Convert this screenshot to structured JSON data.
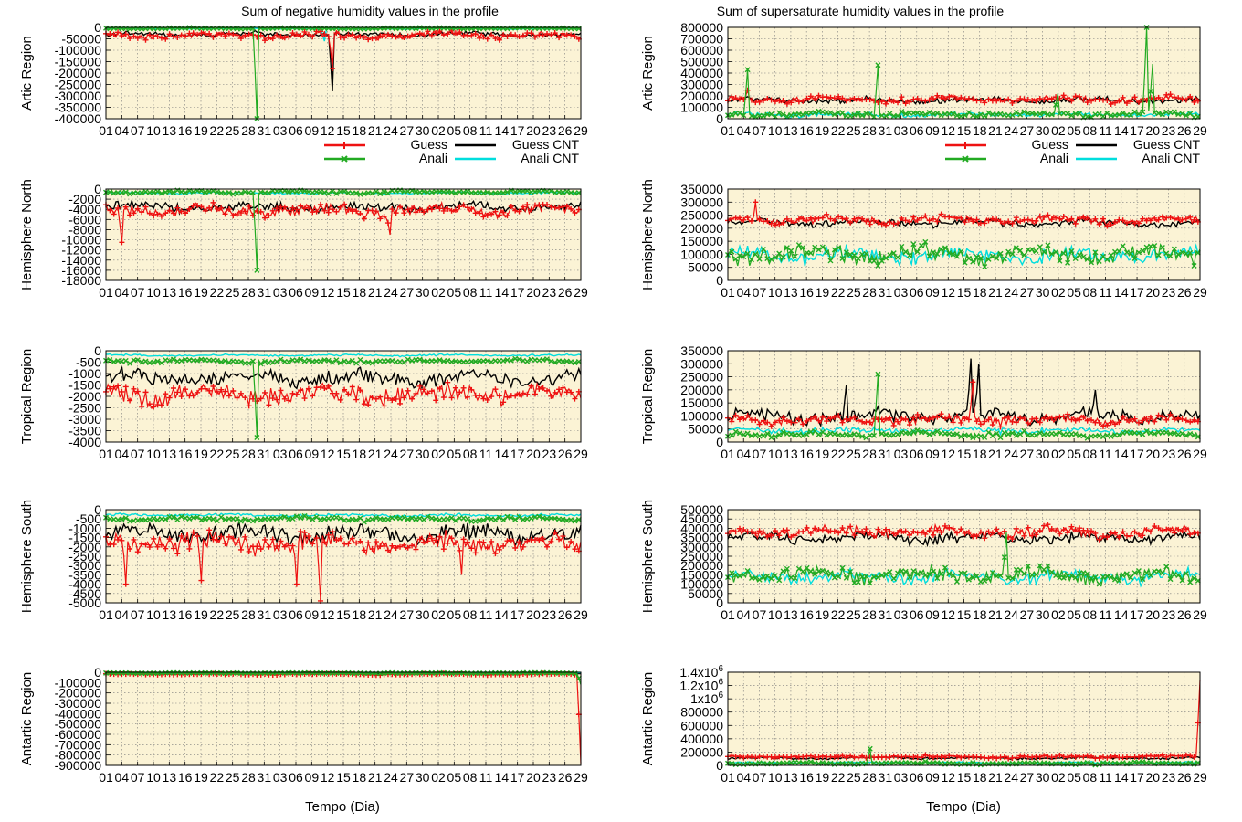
{
  "chart_data": {
    "type": "line",
    "series_names": [
      "Guess",
      "Guess CNT",
      "Anali",
      "Anali CNT"
    ],
    "colors": {
      "guess": "#ee1111",
      "guess_cnt": "#000000",
      "anali": "#22aa22",
      "anali_cnt": "#00dddd"
    },
    "x_tick_labels": [
      "01",
      "04",
      "07",
      "10",
      "13",
      "16",
      "19",
      "22",
      "25",
      "28",
      "31",
      "03",
      "06",
      "09",
      "12",
      "15",
      "18",
      "21",
      "24",
      "27",
      "30",
      "02",
      "05",
      "08",
      "11",
      "14",
      "17",
      "20",
      "23",
      "26",
      "29"
    ],
    "x_axis_label": "Tempo (Dia)",
    "panels": [
      {
        "id": "artic-neg",
        "column": "negative",
        "title": "Sum of negative humidity values in the     profile",
        "ylabel": "Artic Region",
        "ylim": [
          -400000,
          0
        ],
        "yticks": [
          "0",
          "-50000",
          "-100000",
          "-150000",
          "-200000",
          "-250000",
          "-300000",
          "-350000",
          "-400000"
        ],
        "legend": [
          "Guess",
          "Guess CNT",
          "Anali",
          "Anali CNT"
        ],
        "levels": {
          "guess": -35000,
          "guess_cnt": -30000,
          "anali": -4000,
          "anali_cnt": -6000
        },
        "noise": {
          "guess": 20000,
          "guess_cnt": 15000,
          "anali": 3000,
          "anali_cnt": 2500
        },
        "spikes": [
          {
            "series": "anali",
            "pos": 0.316,
            "value": -400000
          },
          {
            "series": "guess_cnt",
            "pos": 0.478,
            "value": -280000
          },
          {
            "series": "guess",
            "pos": 0.478,
            "value": -180000
          },
          {
            "series": "anali_cnt",
            "pos": 0.46,
            "value": -60000
          }
        ]
      },
      {
        "id": "artic-sup",
        "column": "supersaturate",
        "title": "Sum of supersaturate humidity values in the profile",
        "ylabel": "Artic Region",
        "ylim": [
          0,
          800000
        ],
        "yticks": [
          "800000",
          "700000",
          "600000",
          "500000",
          "400000",
          "300000",
          "200000",
          "100000",
          "0"
        ],
        "legend": [
          "Guess",
          "Guess CNT",
          "Anali",
          "Anali CNT"
        ],
        "levels": {
          "guess": 170000,
          "guess_cnt": 160000,
          "anali": 40000,
          "anali_cnt": 35000
        },
        "noise": {
          "guess": 40000,
          "guess_cnt": 35000,
          "anali": 30000,
          "anali_cnt": 25000
        },
        "spikes": [
          {
            "series": "anali",
            "pos": 0.043,
            "value": 430000
          },
          {
            "series": "anali",
            "pos": 0.316,
            "value": 470000
          },
          {
            "series": "anali",
            "pos": 0.885,
            "value": 800000
          },
          {
            "series": "anali",
            "pos": 0.9,
            "value": 480000
          },
          {
            "series": "anali",
            "pos": 0.7,
            "value": 220000
          },
          {
            "series": "guess",
            "pos": 0.04,
            "value": 250000
          }
        ]
      },
      {
        "id": "north-neg",
        "column": "negative",
        "ylabel": "Hemisphere North",
        "ylim": [
          -18000,
          0
        ],
        "yticks": [
          "0",
          "-2000",
          "-4000",
          "-6000",
          "-8000",
          "-10000",
          "-12000",
          "-14000",
          "-16000",
          "-18000"
        ],
        "levels": {
          "guess": -4200,
          "guess_cnt": -3500,
          "anali": -600,
          "anali_cnt": -800
        },
        "noise": {
          "guess": 1600,
          "guess_cnt": 1300,
          "anali": 400,
          "anali_cnt": 300
        },
        "spikes": [
          {
            "series": "anali",
            "pos": 0.316,
            "value": -16000
          },
          {
            "series": "guess",
            "pos": 0.033,
            "value": -10500
          },
          {
            "series": "guess",
            "pos": 0.6,
            "value": -9000
          }
        ]
      },
      {
        "id": "north-sup",
        "column": "supersaturate",
        "ylabel": "Hemisphere North",
        "ylim": [
          0,
          350000
        ],
        "yticks": [
          "350000",
          "300000",
          "250000",
          "200000",
          "150000",
          "100000",
          "50000",
          "0"
        ],
        "levels": {
          "guess": 230000,
          "guess_cnt": 220000,
          "anali": 100000,
          "anali_cnt": 95000
        },
        "noise": {
          "guess": 22000,
          "guess_cnt": 20000,
          "anali": 45000,
          "anali_cnt": 40000
        },
        "spikes": [
          {
            "series": "guess",
            "pos": 0.06,
            "value": 300000
          }
        ]
      },
      {
        "id": "tropical-neg",
        "column": "negative",
        "ylabel": "Tropical Region",
        "ylim": [
          -4000,
          0
        ],
        "yticks": [
          "0",
          "-500",
          "-1000",
          "-1500",
          "-2000",
          "-2500",
          "-3000",
          "-3500",
          "-4000"
        ],
        "levels": {
          "guess": -1900,
          "guess_cnt": -1200,
          "anali": -450,
          "anali_cnt": -200
        },
        "noise": {
          "guess": 550,
          "guess_cnt": 450,
          "anali": 120,
          "anali_cnt": 60
        },
        "spikes": [
          {
            "series": "anali",
            "pos": 0.316,
            "value": -3800
          }
        ]
      },
      {
        "id": "tropical-sup",
        "column": "supersaturate",
        "ylabel": "Tropical Region",
        "ylim": [
          0,
          350000
        ],
        "yticks": [
          "350000",
          "300000",
          "250000",
          "200000",
          "150000",
          "100000",
          "50000",
          "0"
        ],
        "levels": {
          "guess": 85000,
          "guess_cnt": 100000,
          "anali": 30000,
          "anali_cnt": 45000
        },
        "noise": {
          "guess": 25000,
          "guess_cnt": 35000,
          "anali": 15000,
          "anali_cnt": 15000
        },
        "spikes": [
          {
            "series": "anali",
            "pos": 0.316,
            "value": 260000
          },
          {
            "series": "guess_cnt",
            "pos": 0.516,
            "value": 320000
          },
          {
            "series": "guess_cnt",
            "pos": 0.53,
            "value": 300000
          },
          {
            "series": "guess",
            "pos": 0.52,
            "value": 230000
          },
          {
            "series": "guess_cnt",
            "pos": 0.78,
            "value": 200000
          },
          {
            "series": "guess_cnt",
            "pos": 0.25,
            "value": 220000
          }
        ]
      },
      {
        "id": "south-neg",
        "column": "negative",
        "ylabel": "Hemisphere South",
        "ylim": [
          -5000,
          0
        ],
        "yticks": [
          "0",
          "-500",
          "-1000",
          "-1500",
          "-2000",
          "-2500",
          "-3000",
          "-3500",
          "-4000",
          "-4500",
          "-5000"
        ],
        "levels": {
          "guess": -1800,
          "guess_cnt": -1300,
          "anali": -500,
          "anali_cnt": -300
        },
        "noise": {
          "guess": 700,
          "guess_cnt": 600,
          "anali": 150,
          "anali_cnt": 100
        },
        "spikes": [
          {
            "series": "guess",
            "pos": 0.04,
            "value": -4000
          },
          {
            "series": "guess",
            "pos": 0.2,
            "value": -3800
          },
          {
            "series": "guess",
            "pos": 0.4,
            "value": -4000
          },
          {
            "series": "guess",
            "pos": 0.45,
            "value": -4900
          },
          {
            "series": "guess",
            "pos": 0.75,
            "value": -3500
          }
        ]
      },
      {
        "id": "south-sup",
        "column": "supersaturate",
        "ylabel": "Hemisphere  South",
        "ylim": [
          0,
          500000
        ],
        "yticks": [
          "500000",
          "450000",
          "400000",
          "350000",
          "300000",
          "250000",
          "200000",
          "150000",
          "100000",
          "50000",
          "0"
        ],
        "levels": {
          "guess": 380000,
          "guess_cnt": 350000,
          "anali": 150000,
          "anali_cnt": 140000
        },
        "noise": {
          "guess": 40000,
          "guess_cnt": 40000,
          "anali": 55000,
          "anali_cnt": 45000
        },
        "spikes": [
          {
            "series": "anali",
            "pos": 0.59,
            "value": 380000
          }
        ]
      },
      {
        "id": "antartic-neg",
        "column": "negative",
        "ylabel": "Antartic Region",
        "ylim": [
          -900000,
          0
        ],
        "yticks": [
          "0",
          "-100000",
          "-200000",
          "-300000",
          "-400000",
          "-500000",
          "-600000",
          "-700000",
          "-800000",
          "-900000"
        ],
        "levels": {
          "guess": -20000,
          "guess_cnt": -15000,
          "anali": -8000,
          "anali_cnt": -5000
        },
        "noise": {
          "guess": 8000,
          "guess_cnt": 6000,
          "anali": 4000,
          "anali_cnt": 3000
        },
        "spikes": [
          {
            "series": "guess",
            "pos": 1.0,
            "value": -880000
          },
          {
            "series": "anali",
            "pos": 1.0,
            "value": -120000
          }
        ]
      },
      {
        "id": "antartic-sup",
        "column": "supersaturate",
        "ylabel": "Antartic Region",
        "ylim": [
          0,
          1400000
        ],
        "yticks": [
          "1.4x10^6",
          "1.2x10^6",
          "1x10^6",
          "800000",
          "600000",
          "400000",
          "200000",
          "0"
        ],
        "levels": {
          "guess": 130000,
          "guess_cnt": 110000,
          "anali": 30000,
          "anali_cnt": 40000
        },
        "noise": {
          "guess": 30000,
          "guess_cnt": 25000,
          "anali": 25000,
          "anali_cnt": 20000
        },
        "spikes": [
          {
            "series": "guess",
            "pos": 1.0,
            "value": 1280000
          },
          {
            "series": "anali",
            "pos": 0.3,
            "value": 250000
          }
        ]
      }
    ]
  }
}
